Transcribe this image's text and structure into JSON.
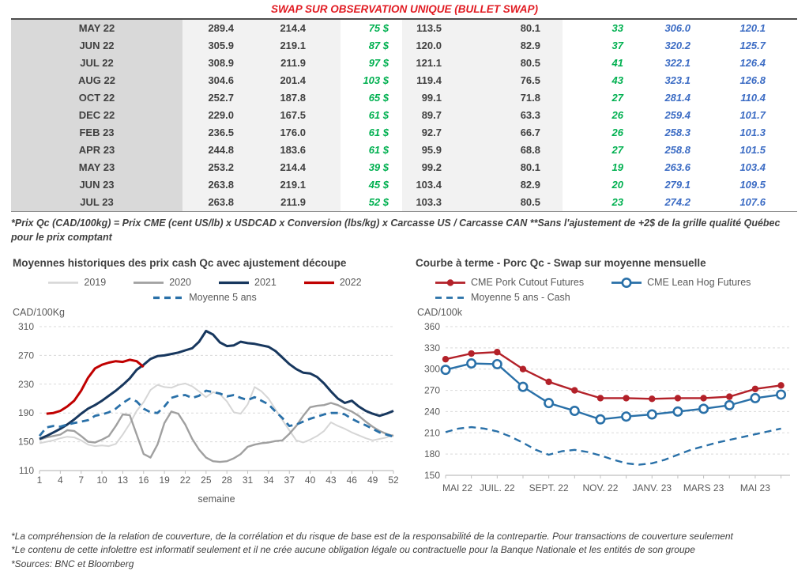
{
  "page": {
    "title": "SWAP SUR OBSERVATION UNIQUE (BULLET SWAP)",
    "title_color": "#e11b22",
    "table_footnote": "*Prix Qc (CAD/100kg) = Prix CME (cent US/lb) x USDCAD x Conversion (lbs/kg) x Carcasse US / Carcasse CAN **Sans l'ajustement de +2$ de la grille qualité Québec pour le prix comptant",
    "footer_notes": [
      "*La compréhension de la relation de couverture, de la corrélation et du risque de base est de la responsabilité de la contrepartie. Pour transactions de couverture seulement",
      "*Le contenu de cette infolettre est informatif seulement et il ne crée aucune obligation légale ou contractuelle pour la Banque Nationale et les entités de son groupe",
      "*Sources: BNC et Bloomberg"
    ]
  },
  "table": {
    "colors": {
      "month_bg": "#d9d9d9",
      "band_bg": "#f2f2f2",
      "text": "#404040",
      "green": "#00b050",
      "blue": "#3c6cc4"
    },
    "rows": [
      {
        "month": "MAY 22",
        "cells": [
          "289.4",
          "214.4",
          "75 $",
          "113.5",
          "80.1",
          "33",
          "306.0",
          "120.1"
        ]
      },
      {
        "month": "JUN 22",
        "cells": [
          "305.9",
          "219.1",
          "87 $",
          "120.0",
          "82.9",
          "37",
          "320.2",
          "125.7"
        ]
      },
      {
        "month": "JUL 22",
        "cells": [
          "308.9",
          "211.9",
          "97 $",
          "121.1",
          "80.5",
          "41",
          "322.1",
          "126.4"
        ]
      },
      {
        "month": "AUG 22",
        "cells": [
          "304.6",
          "201.4",
          "103 $",
          "119.4",
          "76.5",
          "43",
          "323.1",
          "126.8"
        ]
      },
      {
        "month": "OCT 22",
        "cells": [
          "252.7",
          "187.8",
          "65 $",
          "99.1",
          "71.8",
          "27",
          "281.4",
          "110.4"
        ]
      },
      {
        "month": "DEC 22",
        "cells": [
          "229.0",
          "167.5",
          "61 $",
          "89.7",
          "63.3",
          "26",
          "259.4",
          "101.7"
        ]
      },
      {
        "month": "FEB 23",
        "cells": [
          "236.5",
          "176.0",
          "61 $",
          "92.7",
          "66.7",
          "26",
          "258.3",
          "101.3"
        ]
      },
      {
        "month": "APR 23",
        "cells": [
          "244.8",
          "183.6",
          "61 $",
          "95.9",
          "68.8",
          "27",
          "258.8",
          "101.5"
        ]
      },
      {
        "month": "MAY 23",
        "cells": [
          "253.2",
          "214.4",
          "39 $",
          "99.2",
          "80.1",
          "19",
          "263.6",
          "103.4"
        ]
      },
      {
        "month": "JUN 23",
        "cells": [
          "263.8",
          "219.1",
          "45 $",
          "103.4",
          "82.9",
          "20",
          "279.1",
          "109.5"
        ]
      },
      {
        "month": "JUL 23",
        "cells": [
          "263.8",
          "211.9",
          "52 $",
          "103.3",
          "80.5",
          "23",
          "274.2",
          "107.6"
        ]
      }
    ]
  },
  "chart_data": [
    {
      "type": "line",
      "title": "Moyennes historiques des prix cash Qc avec ajustement découpe",
      "ylabel": "CAD/100Kg",
      "xlabel": "semaine",
      "legend_position": "top",
      "grid": "horizontal-dashed",
      "xlim": [
        1,
        52
      ],
      "x_start": 1,
      "ylim": [
        110,
        310
      ],
      "yticks": [
        110,
        150,
        190,
        230,
        270,
        310
      ],
      "xticks": [
        1,
        4,
        7,
        10,
        13,
        16,
        19,
        22,
        25,
        28,
        31,
        34,
        37,
        40,
        43,
        46,
        49,
        52
      ],
      "series": [
        {
          "name": "2019",
          "color": "#d6d6d6",
          "width": 2,
          "dash": false,
          "marker": "none",
          "values": [
            148,
            150,
            152,
            155,
            157,
            156,
            152,
            146,
            144,
            145,
            144,
            147,
            160,
            175,
            193,
            205,
            222,
            229,
            226,
            225,
            229,
            231,
            227,
            220,
            212,
            219,
            216,
            206,
            191,
            189,
            202,
            226,
            220,
            210,
            195,
            180,
            166,
            152,
            149,
            153,
            158,
            165,
            177,
            172,
            168,
            163,
            159,
            155,
            152,
            154,
            156,
            160
          ]
        },
        {
          "name": "2020",
          "color": "#a0a0a0",
          "width": 2.4,
          "dash": false,
          "marker": "none",
          "values": [
            153,
            156,
            158,
            160,
            166,
            165,
            158,
            150,
            149,
            153,
            158,
            172,
            188,
            187,
            160,
            133,
            128,
            146,
            176,
            192,
            189,
            174,
            154,
            139,
            128,
            123,
            122,
            123,
            127,
            133,
            143,
            146,
            148,
            149,
            151,
            152,
            161,
            172,
            186,
            198,
            200,
            201,
            204,
            201,
            196,
            192,
            186,
            178,
            171,
            165,
            161,
            158
          ]
        },
        {
          "name": "2021",
          "color": "#17375e",
          "width": 3,
          "dash": false,
          "marker": "none",
          "values": [
            154,
            158,
            163,
            168,
            174,
            181,
            189,
            196,
            201,
            207,
            214,
            221,
            229,
            238,
            250,
            257,
            265,
            269,
            270,
            272,
            274,
            277,
            280,
            289,
            304,
            299,
            288,
            283,
            284,
            289,
            287,
            286,
            284,
            282,
            276,
            267,
            258,
            251,
            246,
            245,
            240,
            231,
            220,
            210,
            204,
            207,
            199,
            193,
            189,
            186,
            189,
            193
          ]
        },
        {
          "name": "2022",
          "color": "#c00000",
          "width": 3,
          "dash": false,
          "marker": "none",
          "x": [
            2,
            3,
            4,
            5,
            6,
            7,
            8,
            9,
            10,
            11,
            12,
            13,
            14,
            15,
            16
          ],
          "values": [
            189,
            190,
            193,
            199,
            207,
            221,
            239,
            252,
            257,
            260,
            262,
            261,
            264,
            262,
            254
          ]
        },
        {
          "name": "Moyenne 5 ans",
          "color": "#2970a8",
          "width": 2.8,
          "dash": true,
          "marker": "none",
          "values": [
            158,
            170,
            172,
            171,
            174,
            176,
            178,
            180,
            186,
            188,
            191,
            196,
            204,
            210,
            206,
            196,
            191,
            190,
            199,
            211,
            214,
            215,
            211,
            214,
            221,
            219,
            217,
            213,
            215,
            211,
            208,
            212,
            207,
            202,
            192,
            183,
            172,
            174,
            178,
            182,
            185,
            188,
            190,
            190,
            188,
            182,
            177,
            173,
            168,
            163,
            160,
            157
          ]
        }
      ]
    },
    {
      "type": "line",
      "title": "Courbe à terme - Porc Qc - Swap sur moyenne mensuelle",
      "ylabel": "CAD/100k",
      "xlabel": "",
      "legend_position": "top",
      "grid": "horizontal-dashed",
      "xlim": [
        0,
        13.35
      ],
      "x_start": 0,
      "ylim": [
        150,
        360
      ],
      "yticks": [
        150,
        180,
        210,
        240,
        270,
        300,
        330,
        360
      ],
      "xticks": [
        {
          "x": 0,
          "label": "MAI 22"
        },
        {
          "x": 2,
          "label": "JUIL. 22"
        },
        {
          "x": 4,
          "label": "SEPT. 22"
        },
        {
          "x": 6,
          "label": "NOV. 22"
        },
        {
          "x": 8,
          "label": "JANV. 23"
        },
        {
          "x": 10,
          "label": "MARS 23"
        },
        {
          "x": 12,
          "label": "MAI 23"
        }
      ],
      "minor_ticks": [
        0,
        1,
        2,
        3,
        4,
        5,
        6,
        7,
        8,
        9,
        10,
        11,
        12,
        13
      ],
      "series": [
        {
          "name": "CME Pork Cutout Futures",
          "color": "#b32129",
          "width": 2.4,
          "dash": false,
          "marker": "filled",
          "x": [
            0,
            1,
            2,
            3,
            4,
            5,
            6,
            7,
            8,
            9,
            10,
            11,
            12,
            13
          ],
          "values": [
            314,
            322,
            324,
            300,
            282,
            270,
            259,
            259,
            258,
            259,
            259,
            261,
            272,
            277
          ]
        },
        {
          "name": "CME Lean Hog Futures",
          "color": "#2970a8",
          "width": 2.4,
          "dash": false,
          "marker": "open",
          "x": [
            0,
            1,
            2,
            3,
            4,
            5,
            6,
            7,
            8,
            9,
            10,
            11,
            12,
            13
          ],
          "values": [
            299,
            308,
            307,
            275,
            252,
            241,
            229,
            233,
            236,
            240,
            244,
            249,
            259,
            264
          ]
        },
        {
          "name": "Moyenne 5 ans - Cash",
          "color": "#2970a8",
          "width": 2.4,
          "dash": true,
          "marker": "none",
          "x": [
            0,
            0.5,
            1,
            1.5,
            2,
            2.5,
            3,
            3.5,
            4,
            4.5,
            5,
            5.5,
            6,
            6.5,
            7,
            7.5,
            8,
            8.5,
            9,
            9.5,
            10,
            10.5,
            11,
            11.5,
            12,
            12.5,
            13
          ],
          "values": [
            211,
            216,
            218,
            216,
            212,
            205,
            196,
            186,
            179,
            184,
            186,
            183,
            178,
            172,
            167,
            165,
            167,
            172,
            179,
            186,
            191,
            196,
            200,
            204,
            208,
            212,
            216
          ]
        }
      ]
    }
  ]
}
